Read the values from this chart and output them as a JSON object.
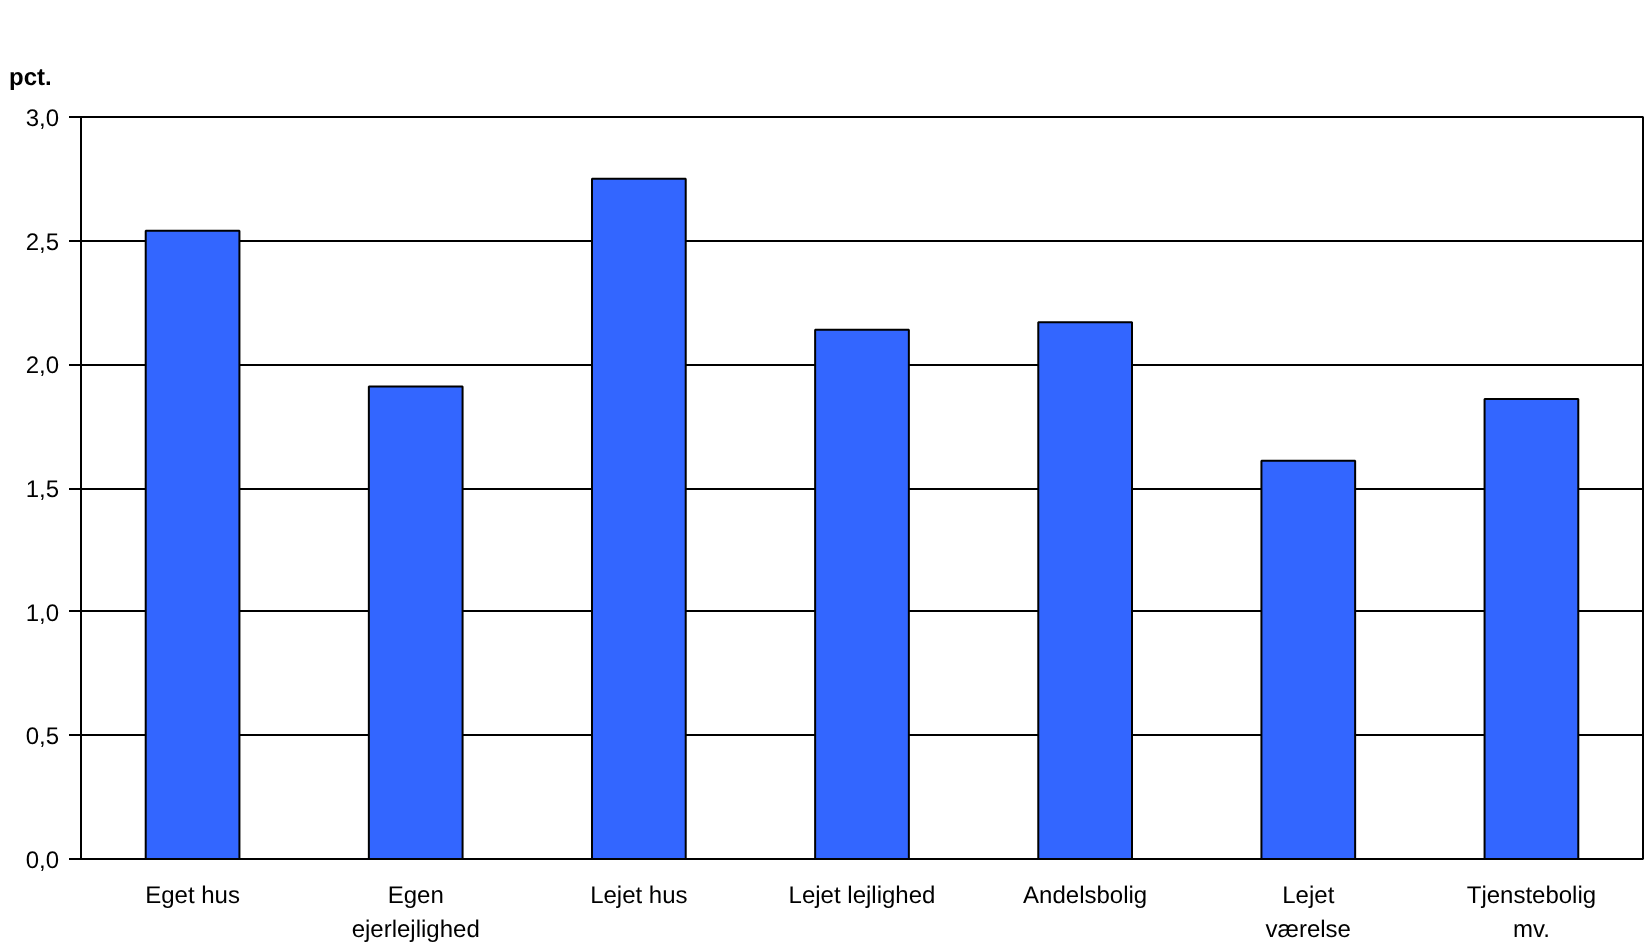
{
  "chart_data": {
    "type": "bar",
    "ylabel": "pct.",
    "categories": [
      "Eget hus",
      "Egen\nejerlejlighed",
      "Lejet hus",
      "Lejet lejlighed",
      "Andelsbolig",
      "Lejet\nværelse",
      "Tjenstebolig\nmv."
    ],
    "values": [
      2.54,
      1.91,
      2.75,
      2.14,
      2.17,
      1.61,
      1.86
    ],
    "color": "#3366ff",
    "ylim": [
      0,
      3
    ],
    "yticks": [
      {
        "value": 0,
        "label": "0,0"
      },
      {
        "value": 0.5,
        "label": "0,5"
      },
      {
        "value": 1,
        "label": "1,0"
      },
      {
        "value": 1.5,
        "label": "1,5"
      },
      {
        "value": 2,
        "label": "2,0"
      },
      {
        "value": 2.5,
        "label": "2,5"
      },
      {
        "value": 3,
        "label": "3,0"
      }
    ],
    "grid": "y"
  }
}
